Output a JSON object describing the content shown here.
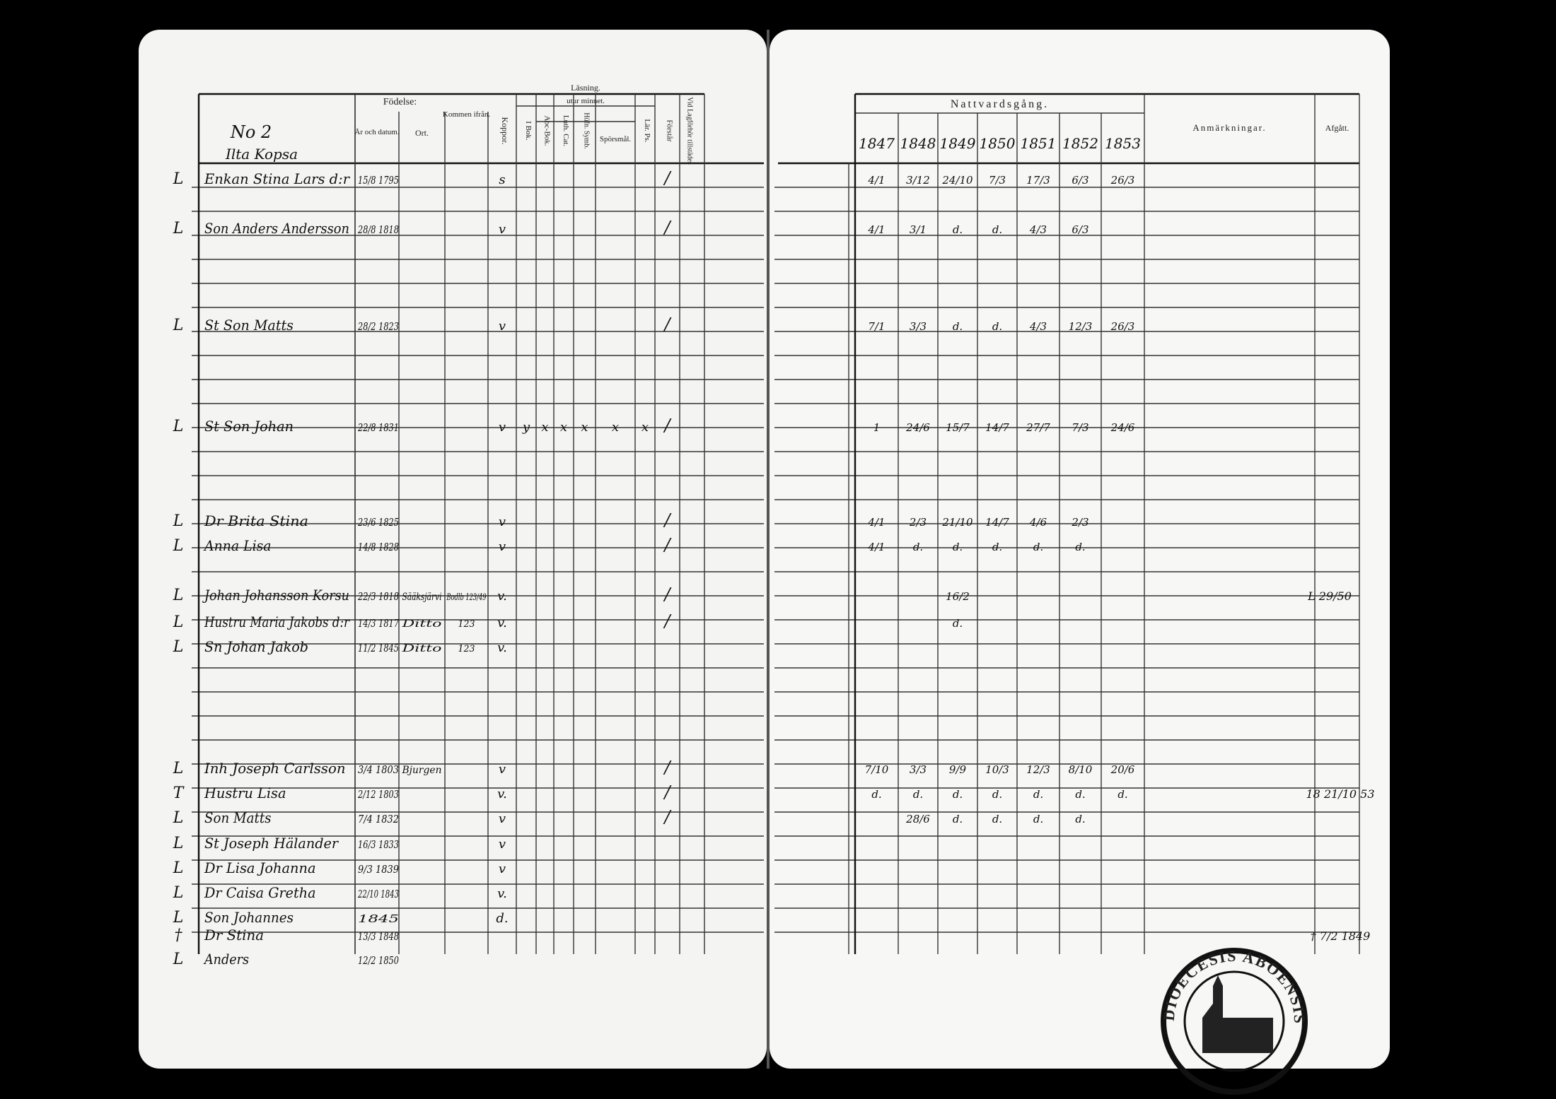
{
  "header": {
    "household_no": "No 2",
    "place": "Ilta Kopsa"
  },
  "columns": {
    "birth": "Födelse:",
    "date": "År och datum.",
    "place": "Ort.",
    "from": "Kommen ifrån.",
    "smallpox": "Koppor.",
    "reading": "Läsning.",
    "by_heart": "utur minnet.",
    "book": "I Bok.",
    "abc": "Abc-Bok.",
    "cat": "Luth. Cat.",
    "symb": "Hüfn. Symb.",
    "questions": "Spörsmål.",
    "psalms": "Lär. Ps.",
    "understands": "Förstår",
    "hearing": "Vid Lagförhör tillstädes",
    "communion": "Nattvardsgång.",
    "years": [
      "1847",
      "1848",
      "1849",
      "1850",
      "1851",
      "1852",
      "1853"
    ],
    "remarks": "Anmärkningar.",
    "left": "Afgått."
  },
  "rows": [
    {
      "margin": "L",
      "name": "Enkan Stina Lars d:r",
      "born": "15/8 1795",
      "smallpox": "s",
      "understands": "/",
      "communion": [
        "4/1",
        "3/12",
        "24/10",
        "7/3",
        "17/3",
        "6/3",
        "26/3"
      ]
    },
    {
      "margin": "L",
      "name": "Son Anders Andersson",
      "born": "28/8 1818",
      "smallpox": "v",
      "understands": "/",
      "communion": [
        "4/1",
        "3/1",
        "d.",
        "d.",
        "4/3",
        "6/3",
        null
      ]
    },
    {
      "margin": "L",
      "name": "St Son Matts",
      "born": "28/2 1823",
      "smallpox": "v",
      "understands": "/",
      "communion": [
        "7/1",
        "3/3",
        "d.",
        "d.",
        "4/3",
        "12/3",
        "26/3"
      ]
    },
    {
      "margin": "L",
      "name": "St Son Johan",
      "born": "22/8 1831",
      "smallpox": "v",
      "reading": [
        "y",
        "x",
        "x",
        "x",
        "x",
        "x"
      ],
      "understands": "/",
      "communion": [
        "1",
        "24/6",
        "15/7",
        "14/7",
        "27/7",
        "7/3",
        "24/6"
      ]
    },
    {
      "margin": "L",
      "name": "Dr Brita Stina",
      "born": "23/6 1825",
      "smallpox": "v",
      "understands": "/",
      "communion": [
        "4/1",
        "2/3",
        "21/10",
        "14/7",
        "4/6",
        "2/3",
        null
      ]
    },
    {
      "margin": "L",
      "name": "Anna Lisa",
      "born": "14/8 1828",
      "smallpox": "v",
      "understands": "/",
      "communion": [
        "4/1",
        "d.",
        "d.",
        "d.",
        "d.",
        "d.",
        null
      ]
    },
    {
      "margin": "L",
      "name": "Johan Johansson Korsu",
      "born": "22/3 1818",
      "from_place": "Sääksjärvi",
      "from_ref": "Bodlb 123/49",
      "smallpox": "v.",
      "understands": "/",
      "communion": [
        null,
        null,
        "16/2",
        null,
        null,
        null,
        null
      ],
      "left": "L 29/50"
    },
    {
      "margin": "L",
      "name": "Hustru Maria Jakobs d:r",
      "born": "14/3 1817",
      "from_place": "Ditto",
      "from_ref": "123",
      "smallpox": "v.",
      "understands": "/",
      "communion": [
        null,
        null,
        "d.",
        null,
        null,
        null,
        null
      ]
    },
    {
      "margin": "L",
      "name": "Sn Johan Jakob",
      "born": "11/2 1845",
      "from_place": "Ditto",
      "from_ref": "123",
      "smallpox": "v."
    },
    {
      "margin": "L",
      "name": "Inh Joseph Carlsson",
      "born": "3/4 1803",
      "from_place": "Bjurgen",
      "smallpox": "v",
      "understands": "/",
      "communion": [
        "7/10",
        "3/3",
        "9/9",
        "10/3",
        "12/3",
        "8/10",
        "20/6"
      ]
    },
    {
      "margin": "T",
      "name": "Hustru Lisa",
      "born": "2/12 1803",
      "smallpox": "v.",
      "understands": "/",
      "communion": [
        "d.",
        "d.",
        "d.",
        "d.",
        "d.",
        "d.",
        "d."
      ],
      "left": "18 21/10 53"
    },
    {
      "margin": "L",
      "name": "Son Matts",
      "born": "7/4 1832",
      "smallpox": "v",
      "understands": "/",
      "communion": [
        null,
        "28/6",
        "d.",
        "d.",
        "d.",
        "d.",
        null
      ]
    },
    {
      "margin": "L",
      "name": "St Joseph Hälander",
      "born": "16/3 1833",
      "smallpox": "v"
    },
    {
      "margin": "L",
      "name": "Dr Lisa Johanna",
      "born": "9/3 1839",
      "smallpox": "v"
    },
    {
      "margin": "L",
      "name": "Dr Caisa Gretha",
      "born": "22/10 1843",
      "smallpox": "v."
    },
    {
      "margin": "L",
      "name": "Son Johannes",
      "born": "1845",
      "smallpox": "d."
    },
    {
      "margin": "†",
      "name": "Dr Stina",
      "born": "13/3 1848",
      "left": "† 7/2 1849"
    },
    {
      "margin": "L",
      "name": "Anders",
      "born": "12/2 1850"
    }
  ],
  "stamp": "DIOECESIS ABOENSIS"
}
